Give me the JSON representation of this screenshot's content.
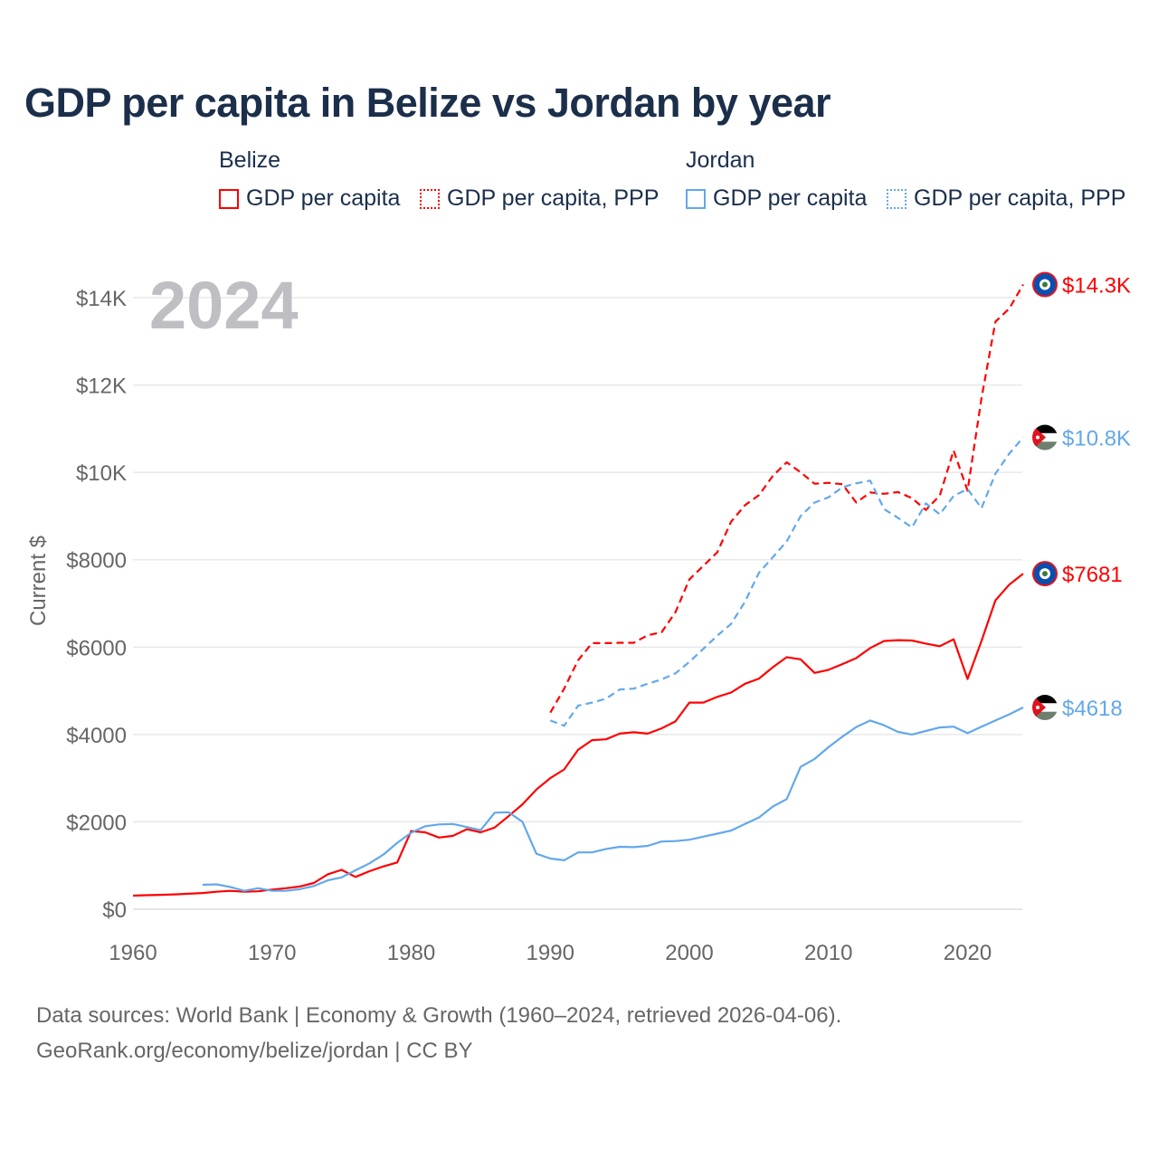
{
  "title": "GDP per capita in Belize vs Jordan by year",
  "legend": {
    "groups": [
      {
        "name": "Belize",
        "color": "#ff0000",
        "items": [
          "GDP per capita",
          "GDP per capita, PPP"
        ]
      },
      {
        "name": "Jordan",
        "color": "#62a8ea",
        "items": [
          "GDP per capita",
          "GDP per capita, PPP"
        ]
      }
    ]
  },
  "year_watermark": "2024",
  "footer": {
    "line1": "Data sources: World Bank | Economy & Growth (1960–2024, retrieved 2026-04-06).",
    "line2": "GeoRank.org/economy/belize/jordan | CC BY"
  },
  "chart_data": {
    "type": "line",
    "title": "GDP per capita in Belize vs Jordan by year",
    "xlabel": "",
    "ylabel": "Current $",
    "xlim": [
      1960,
      2024
    ],
    "ylim": [
      0,
      14000
    ],
    "x_ticks": [
      1960,
      1970,
      1980,
      1990,
      2000,
      2010,
      2020
    ],
    "x_tick_labels": [
      "1960",
      "1970",
      "1980",
      "1990",
      "2000",
      "2010",
      "2020"
    ],
    "y_ticks": [
      0,
      2000,
      4000,
      6000,
      8000,
      10000,
      12000,
      14000
    ],
    "y_tick_labels": [
      "$0",
      "$2000",
      "$4000",
      "$6000",
      "$8000",
      "$10K",
      "$12K",
      "$14K"
    ],
    "grid": true,
    "legend_position": "top",
    "series": [
      {
        "name": "Belize GDP per capita",
        "country": "Belize",
        "color": "#ff0000",
        "dash": false,
        "start": 1960,
        "end_label": "$7681",
        "values": [
          310,
          320,
          330,
          340,
          355,
          370,
          400,
          420,
          400,
          410,
          450,
          480,
          520,
          600,
          800,
          900,
          740,
          870,
          980,
          1070,
          1790,
          1760,
          1640,
          1680,
          1830,
          1760,
          1870,
          2130,
          2400,
          2740,
          3000,
          3200,
          3650,
          3870,
          3890,
          4020,
          4050,
          4020,
          4140,
          4300,
          4730,
          4730,
          4860,
          4960,
          5160,
          5280,
          5540,
          5770,
          5720,
          5410,
          5480,
          5610,
          5750,
          5980,
          6140,
          6160,
          6150,
          6080,
          6020,
          6180,
          5270,
          6140,
          7070,
          7430,
          7681
        ]
      },
      {
        "name": "Belize GDP per capita, PPP",
        "country": "Belize",
        "color": "#ff0000",
        "dash": true,
        "start": 1990,
        "end_label": "$14.3K",
        "values": [
          4500,
          5050,
          5700,
          6090,
          6090,
          6100,
          6100,
          6270,
          6340,
          6800,
          7550,
          7860,
          8170,
          8870,
          9250,
          9480,
          9920,
          10230,
          10000,
          9740,
          9760,
          9730,
          9310,
          9540,
          9510,
          9550,
          9410,
          9140,
          9470,
          10500,
          9580,
          11700,
          13450,
          13750,
          14300
        ]
      },
      {
        "name": "Jordan GDP per capita",
        "country": "Jordan",
        "color": "#62a8ea",
        "dash": false,
        "start": 1965,
        "end_label": "$4618",
        "values": [
          560,
          570,
          510,
          420,
          480,
          420,
          420,
          460,
          530,
          660,
          730,
          890,
          1050,
          1250,
          1520,
          1750,
          1900,
          1940,
          1950,
          1880,
          1810,
          2210,
          2220,
          2000,
          1270,
          1160,
          1120,
          1300,
          1300,
          1380,
          1430,
          1420,
          1450,
          1550,
          1560,
          1590,
          1660,
          1730,
          1800,
          1950,
          2100,
          2350,
          2520,
          3260,
          3440,
          3710,
          3950,
          4170,
          4320,
          4210,
          4060,
          4000,
          4080,
          4160,
          4180,
          4030,
          4180,
          4320,
          4460,
          4618
        ]
      },
      {
        "name": "Jordan GDP per capita, PPP",
        "country": "Jordan",
        "color": "#62a8ea",
        "dash": true,
        "start": 1990,
        "end_label": "$10.8K",
        "values": [
          4320,
          4200,
          4660,
          4730,
          4820,
          5030,
          5050,
          5160,
          5260,
          5400,
          5660,
          5960,
          6260,
          6530,
          7040,
          7700,
          8060,
          8420,
          9000,
          9310,
          9430,
          9660,
          9750,
          9810,
          9160,
          8960,
          8740,
          9290,
          9040,
          9460,
          9620,
          9180,
          9970,
          10430,
          10800
        ]
      }
    ]
  }
}
